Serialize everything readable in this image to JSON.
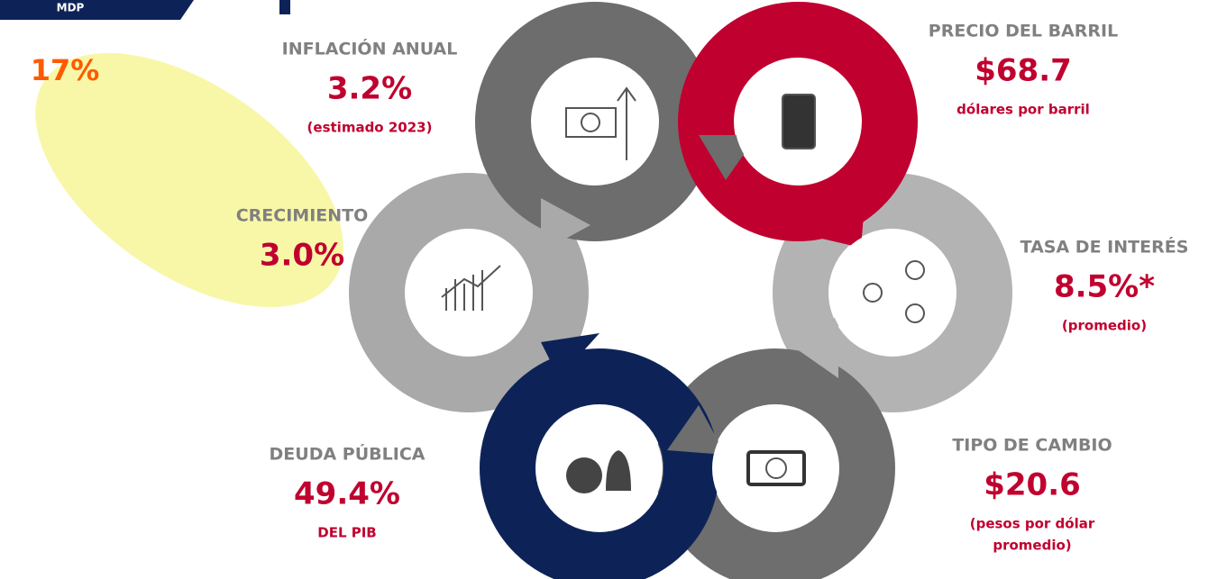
{
  "badge": "MDP",
  "highlight": "17%",
  "items": [
    {
      "label": "INFLACIÓN ANUAL",
      "value": "3.2%",
      "note": [
        "(estimado 2023)"
      ]
    },
    {
      "label": "PRECIO DEL BARRIL",
      "value": "$68.7",
      "note": [
        "dólares por barril"
      ]
    },
    {
      "label": "CRECIMIENTO",
      "value": "3.0%",
      "note": []
    },
    {
      "label": "TASA DE INTERÉS",
      "value": "8.5%*",
      "note": [
        "(promedio)"
      ]
    },
    {
      "label": "DEUDA PÚBLICA",
      "value": "49.4%",
      "note": [
        "DEL PIB"
      ]
    },
    {
      "label": "TIPO DE CAMBIO",
      "value": "$20.6",
      "note": [
        "(pesos por dólar",
        "promedio)"
      ]
    }
  ]
}
